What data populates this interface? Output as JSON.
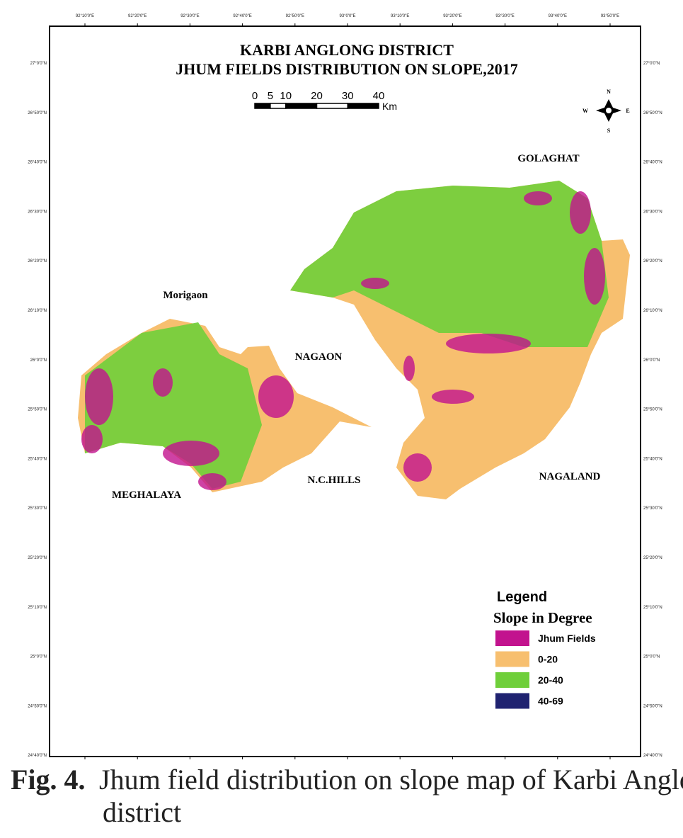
{
  "map": {
    "title": [
      "KARBI ANGLONG DISTRICT",
      "JHUM FIELDS DISTRIBUTION ON SLOPE,2017"
    ],
    "scale": {
      "ticks": [
        0,
        5,
        10,
        20,
        30,
        40
      ],
      "unit": "Km"
    },
    "compass": {
      "n": "N",
      "s": "S",
      "e": "E",
      "w": "W"
    },
    "places": [
      "GOLAGHAT",
      "Morigaon",
      "NAGAON",
      "N.C.HILLS",
      "MEGHALAYA",
      "NAGALAND"
    ],
    "longitudes": [
      "92°10'0\"E",
      "92°20'0\"E",
      "92°30'0\"E",
      "92°40'0\"E",
      "92°50'0\"E",
      "93°0'0\"E",
      "93°10'0\"E",
      "93°20'0\"E",
      "93°30'0\"E",
      "93°40'0\"E",
      "93°50'0\"E"
    ],
    "latitudes": [
      "27°0'0\"N",
      "26°50'0\"N",
      "26°40'0\"N",
      "26°30'0\"N",
      "26°20'0\"N",
      "26°10'0\"N",
      "26°0'0\"N",
      "25°50'0\"N",
      "25°40'0\"N",
      "25°30'0\"N",
      "25°20'0\"N",
      "25°10'0\"N",
      "25°0'0\"N",
      "24°50'0\"N",
      "24°40'0\"N"
    ],
    "legend": {
      "title": "Legend",
      "subtitle": "Slope in Degree",
      "items": [
        {
          "label": "Jhum Fields",
          "color": "#c2138e"
        },
        {
          "label": "0-20",
          "color": "#f7bf6f"
        },
        {
          "label": "20-40",
          "color": "#6fcf3a"
        },
        {
          "label": "40-69",
          "color": "#1f2270"
        }
      ]
    }
  },
  "caption": {
    "label": "Fig. 4.",
    "text": "Jhum field distribution on slope map of Karbi Anglong district"
  }
}
